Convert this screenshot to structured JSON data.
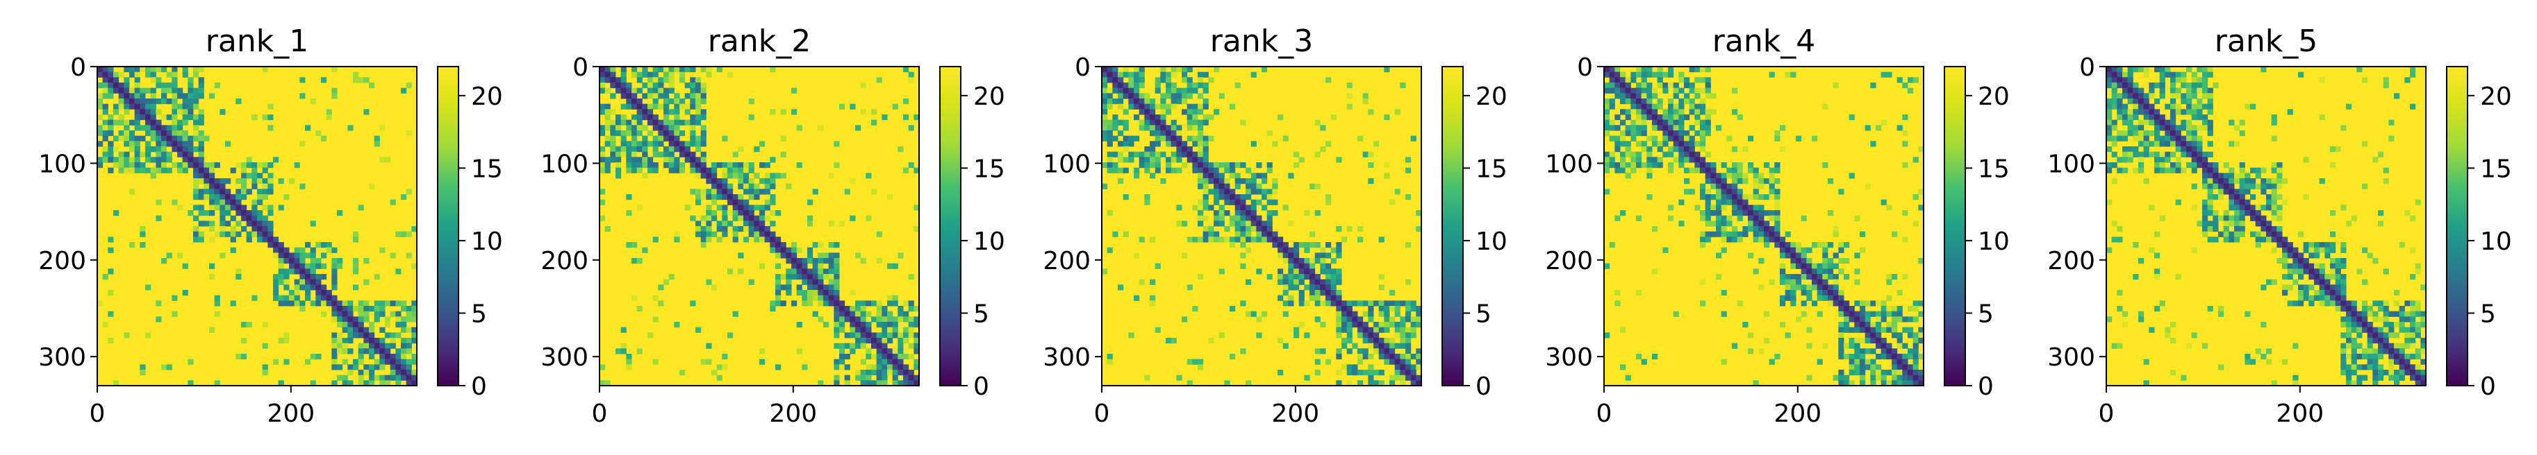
{
  "chart_data": [
    {
      "type": "heatmap",
      "title": "rank_1",
      "x_ticks": [
        0,
        200
      ],
      "y_ticks": [
        0,
        100,
        200,
        300
      ],
      "extent": [
        0,
        330
      ],
      "colorbar": {
        "ticks": [
          0,
          5,
          10,
          15,
          20
        ],
        "range": [
          0,
          22
        ]
      },
      "pattern_seed": 1
    },
    {
      "type": "heatmap",
      "title": "rank_2",
      "x_ticks": [
        0,
        200
      ],
      "y_ticks": [
        0,
        100,
        200,
        300
      ],
      "extent": [
        0,
        330
      ],
      "colorbar": {
        "ticks": [
          0,
          5,
          10,
          15,
          20
        ],
        "range": [
          0,
          22
        ]
      },
      "pattern_seed": 2
    },
    {
      "type": "heatmap",
      "title": "rank_3",
      "x_ticks": [
        0,
        200
      ],
      "y_ticks": [
        0,
        100,
        200,
        300
      ],
      "extent": [
        0,
        330
      ],
      "colorbar": {
        "ticks": [
          0,
          5,
          10,
          15,
          20
        ],
        "range": [
          0,
          22
        ]
      },
      "pattern_seed": 3
    },
    {
      "type": "heatmap",
      "title": "rank_4",
      "x_ticks": [
        0,
        200
      ],
      "y_ticks": [
        0,
        100,
        200,
        300
      ],
      "extent": [
        0,
        330
      ],
      "colorbar": {
        "ticks": [
          0,
          5,
          10,
          15,
          20
        ],
        "range": [
          0,
          22
        ]
      },
      "pattern_seed": 4
    },
    {
      "type": "heatmap",
      "title": "rank_5",
      "x_ticks": [
        0,
        200
      ],
      "y_ticks": [
        0,
        100,
        200,
        300
      ],
      "extent": [
        0,
        330
      ],
      "colorbar": {
        "ticks": [
          0,
          5,
          10,
          15,
          20
        ],
        "range": [
          0,
          22
        ]
      },
      "pattern_seed": 5
    }
  ],
  "colormap": "viridis"
}
